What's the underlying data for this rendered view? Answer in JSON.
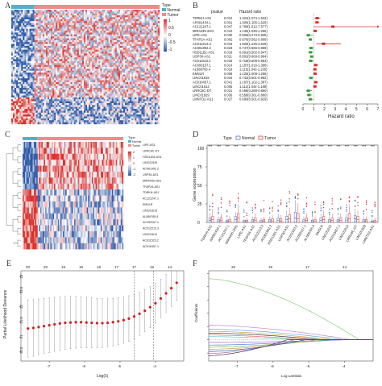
{
  "panel_letters": {
    "a": "A",
    "b": "B",
    "c": "C",
    "d": "D",
    "e": "E",
    "f": "F"
  },
  "panel_a": {
    "legend_title": "Type",
    "groups": [
      "Normal",
      "Tumor"
    ],
    "scale": [
      "1",
      "0.5",
      "0",
      "-0.5",
      "-1"
    ],
    "colors": {
      "normal": "#4fb3c8",
      "tumor": "#f28a8a",
      "low": "#2e5aa8",
      "high": "#d9302c"
    }
  },
  "panel_b": {
    "header_pvalue": "pvalue",
    "header_hr": "Hazard ratio",
    "xlabel": "Hazard ratio",
    "xticks": [
      "0",
      "1",
      "2",
      "3",
      "4",
      "5",
      "6",
      "7"
    ],
    "genes": [
      "TDRKH-AS1",
      "AP001434.1",
      "AC121247.1",
      "MIR4435-2HG",
      "LIPE-AS1",
      "TFAP2A-AS1",
      "AC012213.3",
      "AC061992.2",
      "HSD11B1-AS1",
      "USP30-AS1",
      "AC011523.2",
      "AC093157.1",
      "AL589765.4",
      "EMSLR",
      "LINC01615",
      "AC010457.1",
      "LINC01614",
      "LRRC8C-DT",
      "LINC01929",
      "LMNTD2-AS1"
    ],
    "pvalues": [
      "0.012",
      "0.001",
      "0.047",
      "0.010",
      "0.030",
      "0.002",
      "0.016",
      "0.023",
      "0.018",
      "0.011",
      "0.033",
      "0.014",
      "0.019",
      "0.008",
      "0.034",
      "0.041",
      "0.005",
      "0.021",
      "0.036",
      "0.027"
    ],
    "hr_text": [
      "1.324(1.074-1.633)",
      "1.300(1.105-1.529)",
      "2.789(1.012-7.577)",
      "1.136(1.025-1.256)",
      "0.500(0.273-0.935)",
      "0.676(0.562-0.809)",
      "1.920(1.236-3.549)",
      "0.747(0.565-0.969)",
      "0.691(0.502-0.947)",
      "0.802(0.668-0.964)",
      "0.718(0.509-0.953)",
      "1.187(1.016-1.398)",
      "1.115(1.042-1.235)",
      "1.125(1.008-1.256)",
      "0.742(0.501-0.962)",
      "1.187(1.102-1.387)",
      "1.112(1.044-1.188)",
      "0.496(0.288-0.850)",
      "0.558(0.361-0.860)",
      "0.690(0.501-0.929)"
    ],
    "chart_data": {
      "type": "scatter",
      "xlabel": "Hazard ratio",
      "xlim": [
        0,
        7
      ],
      "hr": [
        1.324,
        1.3,
        2.789,
        1.136,
        0.5,
        0.676,
        1.92,
        0.747,
        0.691,
        0.802,
        0.718,
        1.187,
        1.115,
        1.125,
        0.742,
        1.187,
        1.112,
        0.496,
        0.558,
        0.69
      ],
      "lower": [
        1.074,
        1.105,
        1.012,
        1.025,
        0.273,
        0.562,
        1.236,
        0.565,
        0.502,
        0.668,
        0.509,
        1.016,
        1.042,
        1.008,
        0.501,
        1.102,
        1.044,
        0.288,
        0.361,
        0.501
      ],
      "upper": [
        1.633,
        1.529,
        7.577,
        1.256,
        0.935,
        0.809,
        3.549,
        0.969,
        0.947,
        0.964,
        0.953,
        1.398,
        1.235,
        1.256,
        0.962,
        1.387,
        1.188,
        0.85,
        0.86,
        0.929
      ],
      "colors": {
        "risk": "#d9302c",
        "protective": "#3e9b3e"
      }
    }
  },
  "panel_c": {
    "legend_title": "Type",
    "groups": [
      "Normal",
      "Tumor"
    ],
    "scale": [
      "2",
      "1",
      "0",
      "-1",
      "-2"
    ],
    "genes": [
      "LIPE-AS1",
      "LRRC8C-DT",
      "HSD11B1-AS1",
      "LINC01929",
      "AC061992.2",
      "USP30-AS1",
      "MIR4435-2HG",
      "TFAP2A-AS1",
      "TDRKH-AS1",
      "AC121247.1",
      "EMSLR",
      "LINC01615",
      "AL589765.4",
      "AC093157.1",
      "AC012213.3",
      "LINC01614",
      "AC011523.2",
      "AC010457.1"
    ]
  },
  "panel_d": {
    "legend_title": "Type",
    "legend_items": [
      "Normal",
      "Tumor"
    ],
    "ylabel": "Gene expression",
    "sig": "***",
    "chart_data": {
      "type": "box",
      "ylabel": "Gene expression",
      "ylim": [
        0,
        100
      ],
      "yticks": [
        0,
        25,
        50,
        75,
        100
      ],
      "categories": [
        "TDRKH-AS1",
        "AP001434.1",
        "AC121247.1",
        "MIR4435-2HG",
        "LIPE-AS1",
        "TFAP2A-AS1",
        "AC012213.3",
        "AC061992.2",
        "HSD11B1-AS1",
        "USP30-AS1",
        "AC011523.2",
        "AC093157.1",
        "AL589765.4",
        "EMSLR",
        "LINC01615",
        "AC010457.1",
        "LINC01614",
        "LRRC8C-DT",
        "LINC01929",
        "LMNTD2-AS1"
      ],
      "series": [
        {
          "name": "Normal",
          "color": "#3a6fb5",
          "medians": [
            3,
            2,
            1,
            4,
            1,
            2,
            1,
            2,
            3,
            4,
            6,
            2,
            1,
            3,
            2,
            2,
            3,
            5,
            2,
            1
          ],
          "q3": [
            6,
            4,
            3,
            8,
            3,
            4,
            3,
            4,
            6,
            8,
            14,
            4,
            3,
            6,
            4,
            4,
            6,
            9,
            4,
            2
          ],
          "whisker": [
            12,
            8,
            6,
            14,
            5,
            8,
            6,
            8,
            12,
            16,
            30,
            8,
            6,
            12,
            8,
            8,
            12,
            18,
            8,
            5
          ]
        },
        {
          "name": "Tumor",
          "color": "#d9302c",
          "medians": [
            4,
            3,
            2,
            6,
            1,
            3,
            2,
            2,
            2,
            5,
            5,
            3,
            2,
            4,
            3,
            3,
            5,
            4,
            2,
            1
          ],
          "q3": [
            8,
            6,
            4,
            12,
            3,
            6,
            4,
            5,
            5,
            10,
            12,
            6,
            4,
            8,
            6,
            6,
            12,
            8,
            4,
            3
          ],
          "whisker": [
            18,
            12,
            9,
            24,
            6,
            12,
            8,
            10,
            10,
            20,
            26,
            12,
            8,
            16,
            12,
            12,
            24,
            16,
            8,
            6
          ]
        }
      ]
    }
  },
  "panel_e": {
    "ylabel": "Partial Likelihood Deviance",
    "xlabel": "Log(λ)",
    "top_ticks": [
      "20",
      "20",
      "19",
      "19",
      "18",
      "17",
      "17",
      "15",
      "14"
    ],
    "chart_data": {
      "type": "scatter",
      "xlabel": "Log(λ)",
      "ylabel": "Partial Likelihood Deviance",
      "xlim": [
        -7.8,
        -3.2
      ],
      "ylim": [
        20.2,
        23.2
      ],
      "xticks": [
        -7,
        -6,
        -5,
        -4
      ],
      "yticks": [
        20.5,
        21.0,
        21.5,
        22.0,
        22.5,
        23.0
      ],
      "x": [
        -7.6,
        -7.45,
        -7.3,
        -7.15,
        -7.0,
        -6.85,
        -6.7,
        -6.55,
        -6.4,
        -6.25,
        -6.1,
        -5.95,
        -5.8,
        -5.65,
        -5.5,
        -5.35,
        -5.2,
        -5.05,
        -4.9,
        -4.75,
        -4.6,
        -4.45,
        -4.3,
        -4.15,
        -4.0,
        -3.85,
        -3.7,
        -3.55,
        -3.4
      ],
      "y": [
        21.28,
        21.3,
        21.33,
        21.36,
        21.39,
        21.42,
        21.45,
        21.47,
        21.48,
        21.49,
        21.49,
        21.48,
        21.47,
        21.46,
        21.46,
        21.47,
        21.49,
        21.52,
        21.56,
        21.61,
        21.68,
        21.77,
        21.87,
        21.99,
        22.12,
        22.28,
        22.45,
        22.62,
        22.8
      ],
      "err": [
        0.95,
        0.94,
        0.93,
        0.92,
        0.91,
        0.9,
        0.89,
        0.88,
        0.87,
        0.86,
        0.85,
        0.84,
        0.83,
        0.82,
        0.81,
        0.8,
        0.79,
        0.78,
        0.77,
        0.76,
        0.74,
        0.72,
        0.7,
        0.68,
        0.66,
        0.64,
        0.62,
        0.6,
        0.58
      ],
      "vlines": [
        -4.6,
        -4.05
      ]
    }
  },
  "panel_f": {
    "ylabel": "Coefficients",
    "xlabel": "Log Lambda",
    "top_ticks": [
      "20",
      "19",
      "17",
      "14"
    ],
    "chart_data": {
      "type": "line",
      "xlabel": "Log Lambda",
      "ylabel": "Coefficients",
      "xlim": [
        -7.8,
        -3.2
      ],
      "xticks": [
        -7,
        -6,
        -5,
        -4
      ],
      "ylim": [
        -0.8,
        2.6
      ],
      "yticks": [
        -0.5,
        0.0,
        0.5,
        1.0,
        1.5,
        2.0,
        2.5
      ],
      "series": [
        {
          "color": "#8bc97a",
          "start": 2.3
        },
        {
          "color": "#c47fd1",
          "start": 0.55
        },
        {
          "color": "#6aa6e0",
          "start": 0.4
        },
        {
          "color": "#e0a04a",
          "start": 0.32
        },
        {
          "color": "#3c3c3c",
          "start": 0.25
        },
        {
          "color": "#e86f6f",
          "start": 0.18
        },
        {
          "color": "#5fc9c9",
          "start": 0.12
        },
        {
          "color": "#9d6ad0",
          "start": -0.1
        },
        {
          "color": "#4e8ad0",
          "start": -0.2
        },
        {
          "color": "#74b870",
          "start": -0.28
        },
        {
          "color": "#d2a64c",
          "start": -0.36
        },
        {
          "color": "#2f4fa0",
          "start": -0.44
        },
        {
          "color": "#b85fa8",
          "start": -0.52
        },
        {
          "color": "#444444",
          "start": -0.6
        }
      ]
    }
  }
}
